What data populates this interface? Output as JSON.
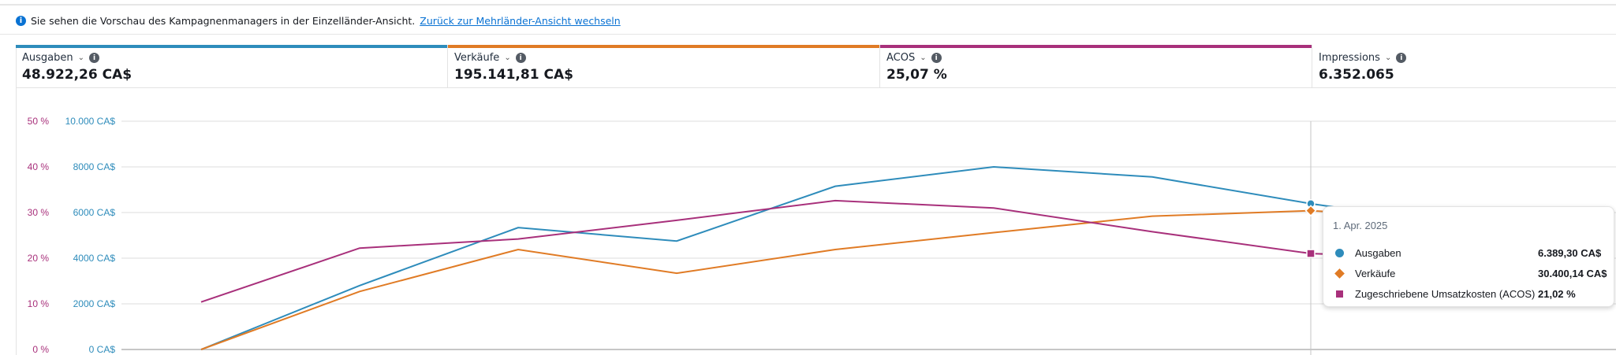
{
  "banner": {
    "text": "Sie sehen die Vorschau des Kampagnenmanagers in der Einzelländer-Ansicht.",
    "link": "Zurück zur Mehrländer-Ansicht wechseln"
  },
  "cards": [
    {
      "label": "Ausgaben",
      "value": "48.922,26 CA$",
      "color": "#2e8cbb"
    },
    {
      "label": "Verkäufe",
      "value": "195.141,81 CA$",
      "color": "#e07b25"
    },
    {
      "label": "ACOS",
      "value": "25,07 %",
      "color": "#a8307b"
    },
    {
      "label": "Impressions",
      "value": "6.352.065",
      "color": ""
    }
  ],
  "tooltip": {
    "date": "1. Apr. 2025",
    "rows": [
      {
        "name": "Ausgaben",
        "value": "6.389,30 CA$"
      },
      {
        "name": "Verkäufe",
        "value": "30.400,14 CA$"
      },
      {
        "name": "Zugeschriebene Umsatzkosten (ACOS)",
        "value": "21,02 %"
      }
    ]
  },
  "chart_data": {
    "type": "line",
    "left_axis_pct": {
      "ticks": [
        "0 %",
        "10 %",
        "20 %",
        "30 %",
        "40 %",
        "50 %"
      ],
      "range": [
        0,
        50
      ]
    },
    "left_axis_cad": {
      "ticks": [
        "0 CA$",
        "2000 CA$",
        "4000 CA$",
        "6000 CA$",
        "8000 CA$",
        "10.000 CA$"
      ],
      "range": [
        0,
        10000
      ]
    },
    "series": [
      {
        "name": "Ausgaben",
        "color": "#2e8cbb",
        "range": [
          0,
          10000
        ],
        "values": [
          0,
          2800,
          5340,
          4750,
          7150,
          8000,
          7560,
          6389.3
        ]
      },
      {
        "name": "Verkäufe",
        "color": "#e07b25",
        "range": [
          0,
          50000
        ],
        "values": [
          0,
          12700,
          21900,
          16700,
          21900,
          25600,
          29200,
          30400.14
        ]
      },
      {
        "name": "ACOS",
        "color": "#a8307b",
        "range": [
          0,
          50
        ],
        "values": [
          10.4,
          22.2,
          24.2,
          28.3,
          32.6,
          31.0,
          25.8,
          21.02
        ]
      }
    ],
    "highlight_index": 7
  }
}
